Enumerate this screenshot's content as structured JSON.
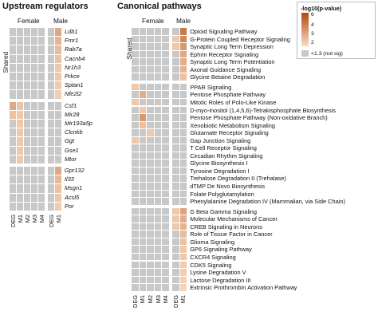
{
  "titles": {
    "upstream": "Upstream regulators",
    "canonical": "Canonical pathways"
  },
  "group_labels": {
    "female": "Female",
    "male": "Male",
    "shared": "Shared"
  },
  "columns": [
    "DEG",
    "M1",
    "M2",
    "M3",
    "M4",
    "DEG",
    "M1"
  ],
  "legend": {
    "title": "-log10(p-value)",
    "ticks": [
      "6",
      "4",
      "3",
      "2"
    ],
    "not_sig": "<1.3 (not sig)",
    "colors": {
      "high": "#b0490f",
      "low": "#f9dec4",
      "not_sig": "#c8c8c8"
    }
  },
  "upstream": {
    "blocks": [
      {
        "name": "shared",
        "rows": [
          {
            "label": "Ldb1",
            "values": [
              0,
              0,
              0,
              0,
              0,
              0,
              3.0
            ]
          },
          {
            "label": "Fmr1",
            "values": [
              0,
              0,
              0,
              0,
              0,
              0,
              2.6
            ]
          },
          {
            "label": "Rab7a",
            "values": [
              0,
              0,
              0,
              0,
              0,
              0,
              2.4
            ]
          },
          {
            "label": "Cacnb4",
            "values": [
              0,
              0,
              0,
              0,
              0,
              0,
              2.2
            ]
          },
          {
            "label": "Nr1h3",
            "values": [
              0,
              0,
              0,
              0,
              0,
              0,
              2.0
            ]
          },
          {
            "label": "Prkce",
            "values": [
              0,
              0,
              0,
              0,
              0,
              0,
              2.0
            ]
          },
          {
            "label": "Sptan1",
            "values": [
              0,
              0,
              0,
              0,
              0,
              0,
              1.9
            ]
          },
          {
            "label": "Nfe2l2",
            "values": [
              0,
              0,
              0,
              0,
              0,
              0,
              1.8
            ]
          }
        ]
      },
      {
        "name": "female",
        "rows": [
          {
            "label": "Csf1",
            "values": [
              3.0,
              2.1,
              0,
              0,
              0,
              0,
              0
            ]
          },
          {
            "label": "Mir28",
            "values": [
              2.2,
              2.0,
              0,
              0,
              0,
              0,
              0
            ]
          },
          {
            "label": "Mir193a5p",
            "values": [
              0,
              2.0,
              0,
              0,
              0,
              0,
              0
            ]
          },
          {
            "label": "Clcnkb",
            "values": [
              0,
              2.0,
              0,
              0,
              0,
              0,
              0
            ]
          },
          {
            "label": "Ggt",
            "values": [
              0,
              2.0,
              0,
              0,
              0,
              0,
              0
            ]
          },
          {
            "label": "Gse1",
            "values": [
              0,
              2.0,
              0,
              0,
              0,
              0,
              0
            ]
          },
          {
            "label": "Mtor",
            "values": [
              0,
              2.0,
              0,
              0,
              0,
              0,
              0
            ]
          }
        ]
      },
      {
        "name": "male",
        "rows": [
          {
            "label": "Gpr132",
            "values": [
              0,
              0,
              0,
              0,
              0,
              0,
              3.0
            ]
          },
          {
            "label": "Il33",
            "values": [
              0,
              0,
              0,
              0,
              0,
              0,
              2.5
            ]
          },
          {
            "label": "Msgn1",
            "values": [
              0,
              0,
              0,
              0,
              0,
              0,
              2.2
            ]
          },
          {
            "label": "Acsl5",
            "values": [
              0,
              0,
              0,
              0,
              0,
              0,
              2.0
            ]
          },
          {
            "label": "Por",
            "values": [
              0,
              0,
              0,
              0,
              0,
              0,
              1.9
            ]
          }
        ]
      }
    ]
  },
  "canonical": {
    "blocks": [
      {
        "name": "shared",
        "rows": [
          {
            "label": "Opioid Signaling Pathway",
            "values": [
              0,
              0,
              0,
              0,
              0,
              0,
              4.5
            ]
          },
          {
            "label": "G-Protein Coupled Receptor Signaling",
            "values": [
              0,
              0,
              0,
              0,
              0,
              2.0,
              4.0
            ]
          },
          {
            "label": "Synaptic Long Term Depression",
            "values": [
              0,
              0,
              0,
              0,
              0,
              2.0,
              3.5
            ]
          },
          {
            "label": "Ephrin Receptor Signaling",
            "values": [
              0,
              0,
              0,
              0,
              0,
              0,
              3.0
            ]
          },
          {
            "label": "Synaptic Long Term Potentiation",
            "values": [
              0,
              0,
              0,
              0,
              0,
              0,
              2.8
            ]
          },
          {
            "label": "Axonal Guidance Signaling",
            "values": [
              0,
              0,
              0,
              0,
              0,
              0,
              2.6
            ]
          },
          {
            "label": "Glycine Betaine Degradation",
            "values": [
              0,
              0,
              0,
              0,
              0,
              0,
              2.2
            ]
          }
        ]
      },
      {
        "name": "female",
        "rows": [
          {
            "label": "PPAR Signaling",
            "values": [
              2.0,
              0,
              0,
              0,
              0,
              0,
              0
            ]
          },
          {
            "label": "Pentose Phosphate Pathway",
            "values": [
              0,
              2.8,
              0,
              0,
              0,
              0,
              0
            ]
          },
          {
            "label": "Mitotic Roles of Polo-Like Kinase",
            "values": [
              2.0,
              0,
              0,
              0,
              0,
              0,
              0
            ]
          },
          {
            "label": "D-myo-inositol (1,4,5,6)-Tetrakisphosphate Biosynthesis",
            "values": [
              0,
              2.0,
              0,
              0,
              0,
              0,
              0
            ]
          },
          {
            "label": "Pentose Phosphate Pathway (Non-oxidative Branch)",
            "values": [
              0,
              3.5,
              0,
              0,
              0,
              0,
              0
            ]
          },
          {
            "label": "Xenobiotic Metabolism Signaling",
            "values": [
              0,
              2.2,
              0,
              0,
              0,
              0,
              0
            ]
          },
          {
            "label": "Glutamate Receptor Signaling",
            "values": [
              0,
              0,
              2.0,
              0,
              0,
              0,
              0
            ]
          },
          {
            "label": "Gap Junction Signaling",
            "values": [
              2.0,
              0,
              0,
              0,
              0,
              0,
              0
            ]
          },
          {
            "label": "T Cell Receptor Signaling",
            "values": [
              0,
              0,
              0,
              0,
              0,
              0,
              0
            ]
          },
          {
            "label": "Circadian Rhythm Signaling",
            "values": [
              0,
              0,
              0,
              0,
              0,
              0,
              0
            ]
          },
          {
            "label": "Glycine Biosynthesis I",
            "values": [
              0,
              0,
              0,
              0,
              0,
              0,
              0
            ]
          },
          {
            "label": "Tyrosine Degradation I",
            "values": [
              0,
              0,
              0,
              0,
              0,
              0,
              0
            ]
          },
          {
            "label": "Trehalose Degradation II (Trehalase)",
            "values": [
              0,
              0,
              0,
              0,
              0,
              0,
              0
            ]
          },
          {
            "label": "dTMP De Novo Biosynthesis",
            "values": [
              0,
              0,
              0,
              0,
              0,
              0,
              0
            ]
          },
          {
            "label": "Folate Polyglutamylation",
            "values": [
              0,
              0,
              0,
              0,
              0,
              0,
              0
            ]
          },
          {
            "label": "Phenylalanine Degradation IV (Mammalian, via Side Chain)",
            "values": [
              0,
              0,
              0,
              0,
              0,
              0,
              0
            ]
          }
        ]
      },
      {
        "name": "male",
        "rows": [
          {
            "label": "G Beta Gamma Signaling",
            "values": [
              0,
              0,
              0,
              0,
              0,
              2.0,
              3.2
            ]
          },
          {
            "label": "Molecular Mechanisms of Cancer",
            "values": [
              0,
              0,
              0,
              0,
              0,
              2.0,
              2.8
            ]
          },
          {
            "label": "CREB Signaling in Neurons",
            "values": [
              0,
              0,
              0,
              0,
              0,
              2.0,
              2.6
            ]
          },
          {
            "label": "Role of Tissue Factor in Cancer",
            "values": [
              0,
              0,
              0,
              0,
              0,
              0,
              2.4
            ]
          },
          {
            "label": "Glioma Signaling",
            "values": [
              0,
              0,
              0,
              0,
              0,
              0,
              2.2
            ]
          },
          {
            "label": "GP6 Signaling Pathway",
            "values": [
              0,
              0,
              0,
              0,
              0,
              0,
              2.0
            ]
          },
          {
            "label": "CXCR4 Signaling",
            "values": [
              0,
              0,
              0,
              0,
              0,
              0,
              2.0
            ]
          },
          {
            "label": "CDK5 Signaling",
            "values": [
              0,
              0,
              0,
              0,
              0,
              0,
              1.9
            ]
          },
          {
            "label": "Lysine Degradation V",
            "values": [
              0,
              0,
              0,
              0,
              0,
              0,
              1.8
            ]
          },
          {
            "label": "Lactose Degradation III",
            "values": [
              0,
              0,
              0,
              0,
              0,
              0,
              1.7
            ]
          },
          {
            "label": "Extrinsic Prothrombin Activation Pathway",
            "values": [
              0,
              0,
              0,
              0,
              0,
              0,
              1.6
            ]
          }
        ]
      }
    ]
  }
}
